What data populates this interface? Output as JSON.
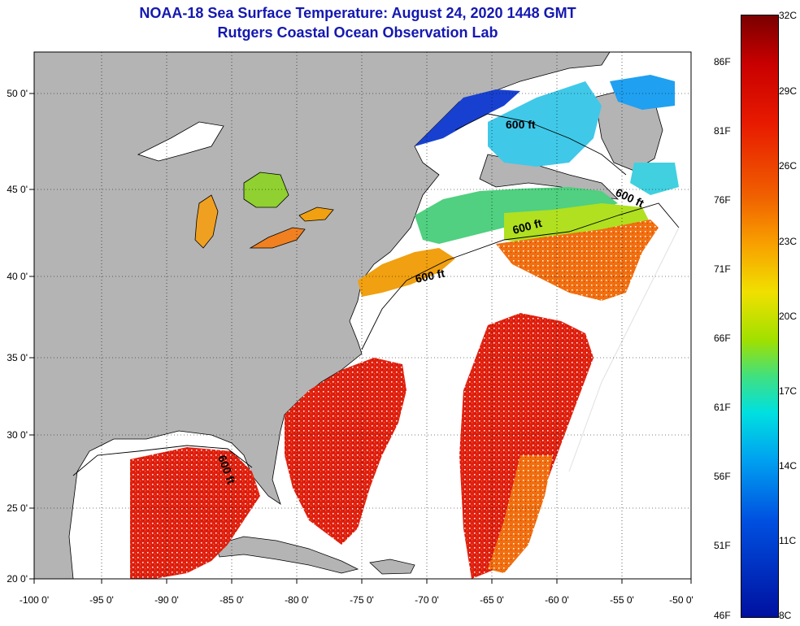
{
  "title": {
    "line1": "NOAA-18 Sea Surface Temperature:  August 24, 2020 1448 GMT",
    "line2": "Rutgers Coastal Ocean Observation Lab"
  },
  "map": {
    "lon_ticks": [
      "-100 0'",
      "-95 0'",
      "-90 0'",
      "-85 0'",
      "-80 0'",
      "-75 0'",
      "-70 0'",
      "-65 0'",
      "-60 0'",
      "-55 0'",
      "-50 0'"
    ],
    "lat_ticks": [
      "50 0'",
      "45 0'",
      "40 0'",
      "35 0'",
      "30 0'",
      "25 0'",
      "20 0'"
    ],
    "contour_labels": [
      "600 ft",
      "600 ft",
      "600 ft",
      "600 ft",
      "600 ft"
    ],
    "colors": {
      "land": "#b4b4b4",
      "no_data": "#ffffff",
      "warm": "#e02010",
      "orange": "#f07010",
      "cold": "#1040d0"
    }
  },
  "colorbar": {
    "celsius": [
      "32C",
      "29C",
      "26C",
      "23C",
      "20C",
      "17C",
      "14C",
      "11C",
      "8C"
    ],
    "fahrenheit": [
      "86F",
      "81F",
      "76F",
      "71F",
      "66F",
      "61F",
      "56F",
      "51F",
      "46F"
    ]
  }
}
